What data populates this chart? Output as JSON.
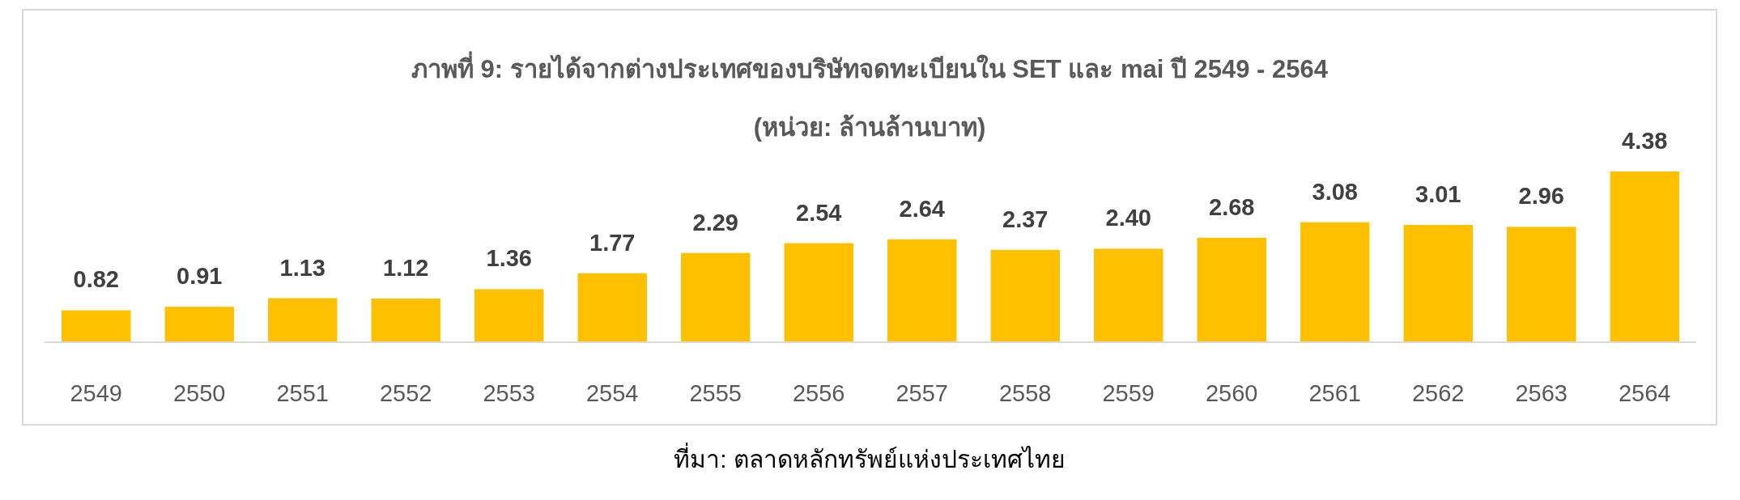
{
  "chart_data": {
    "type": "bar",
    "title": "ภาพที่ 9: รายได้จากต่างประเทศของบริษัทจดทะเบียนใน SET และ mai ปี 2549 - 2564",
    "subtitle": "(หน่วย: ล้านล้านบาท)",
    "categories": [
      "2549",
      "2550",
      "2551",
      "2552",
      "2553",
      "2554",
      "2555",
      "2556",
      "2557",
      "2558",
      "2559",
      "2560",
      "2561",
      "2562",
      "2563",
      "2564"
    ],
    "values": [
      0.82,
      0.91,
      1.13,
      1.12,
      1.36,
      1.77,
      2.29,
      2.54,
      2.64,
      2.37,
      2.4,
      2.68,
      3.08,
      3.01,
      2.96,
      4.38
    ],
    "value_labels": [
      "0.82",
      "0.91",
      "1.13",
      "1.12",
      "1.36",
      "1.77",
      "2.29",
      "2.54",
      "2.64",
      "2.37",
      "2.40",
      "2.68",
      "3.08",
      "3.01",
      "2.96",
      "4.38"
    ],
    "color": "#ffc000",
    "annotations": [
      "ที่มา: ตลาดหลักทรัพย์แห่งประเทศไทย"
    ]
  }
}
